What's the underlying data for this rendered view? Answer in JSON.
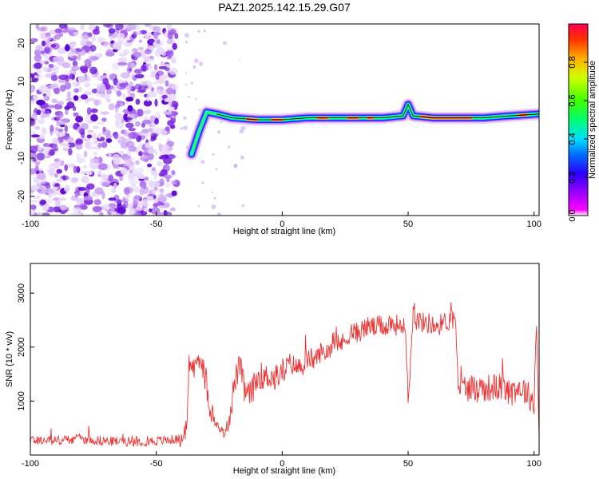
{
  "title": "PAZ1.2025.142.15.29.G07",
  "colors": {
    "snr_line": "#ee3333",
    "noise": "#7a1fe0",
    "colorbar": [
      "#ff00ff",
      "#7a00ff",
      "#0000ff",
      "#00c0ff",
      "#00ff80",
      "#40ff00",
      "#c0ff00",
      "#ffc000",
      "#ff4000",
      "#ff0040"
    ]
  },
  "chart_data": [
    {
      "type": "heatmap",
      "title": "PAZ1.2025.142.15.29.G07",
      "xlabel": "Height of straight line (km)",
      "ylabel": "Frequency (Hz)",
      "xlim": [
        -100,
        102
      ],
      "ylim": [
        -25,
        25
      ],
      "xticks": [
        "-100",
        "-50",
        "0",
        "50",
        "100"
      ],
      "yticks": [
        "-20",
        "-10",
        "0",
        "10",
        "20"
      ],
      "colorbar": {
        "label": "Normalized spectral amplitude",
        "range": [
          0,
          1
        ],
        "ticks": [
          "0.0",
          "0.2",
          "0.4",
          "0.6",
          "0.8"
        ]
      },
      "ridge": {
        "x": [
          -36,
          -33,
          -30,
          -26,
          -20,
          -10,
          0,
          10,
          20,
          30,
          40,
          48,
          50,
          52,
          60,
          70,
          80,
          90,
          102
        ],
        "y": [
          -9,
          -3,
          2,
          1.5,
          0.5,
          0,
          0,
          0.5,
          0.5,
          0.5,
          0.5,
          1,
          4,
          1,
          0.5,
          0.5,
          0.5,
          1,
          1.5
        ]
      }
    },
    {
      "type": "line",
      "xlabel": "Height of straight line (km)",
      "ylabel": "SNR (10 * v/v)",
      "xlim": [
        -100,
        102
      ],
      "ylim": [
        0,
        3550
      ],
      "xticks": [
        "-100",
        "-50",
        "0",
        "50",
        "100"
      ],
      "yticks": [
        "1000",
        "2000",
        "3000"
      ],
      "series": [
        {
          "x": [
            -100,
            -90,
            -80,
            -70,
            -60,
            -50,
            -40,
            -38,
            -37,
            -35,
            -33,
            -31,
            -29,
            -27,
            -25,
            -23,
            -21,
            -19,
            -17,
            -15,
            -13,
            -11,
            -9,
            -7,
            -5,
            -3,
            -1,
            1,
            3,
            5,
            7,
            9,
            11,
            13,
            15,
            17,
            19,
            21,
            23,
            25,
            27,
            29,
            31,
            33,
            35,
            37,
            39,
            41,
            43,
            45,
            47,
            49,
            50,
            51,
            52,
            53,
            54,
            56,
            58,
            60,
            62,
            64,
            66,
            68,
            69,
            70,
            72,
            75,
            80,
            85,
            90,
            95,
            98,
            100,
            101,
            102
          ],
          "y": [
            280,
            270,
            300,
            260,
            250,
            260,
            300,
            400,
            1700,
            1600,
            1800,
            1500,
            1000,
            600,
            500,
            400,
            700,
            1300,
            1700,
            1200,
            1100,
            1300,
            1500,
            1400,
            1500,
            1400,
            1500,
            1600,
            1700,
            1650,
            1600,
            1700,
            1800,
            1750,
            1900,
            1900,
            2000,
            2000,
            2050,
            2100,
            2300,
            2250,
            2300,
            2350,
            2400,
            2350,
            2400,
            2400,
            2450,
            2400,
            2450,
            2300,
            1000,
            1800,
            2900,
            2500,
            2500,
            2450,
            2450,
            2400,
            2400,
            2450,
            2500,
            2500,
            2450,
            1300,
            1250,
            1250,
            1250,
            1250,
            1200,
            1250,
            1100,
            1000,
            2500,
            300
          ]
        }
      ]
    }
  ]
}
